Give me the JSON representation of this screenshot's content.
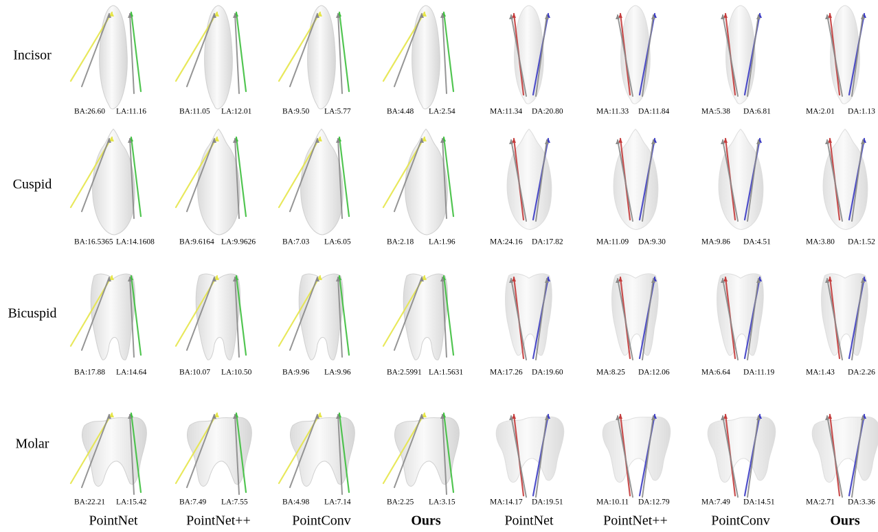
{
  "row_labels": [
    "Incisor",
    "Cuspid",
    "Bicuspid",
    "Molar"
  ],
  "column_labels": [
    "PointNet",
    "PointNet++",
    "PointConv",
    "Ours",
    "PointNet",
    "PointNet++",
    "PointConv",
    "Ours"
  ],
  "cells": [
    [
      [
        "BA:26.60",
        "LA:11.16"
      ],
      [
        "BA:11.05",
        "LA:12.01"
      ],
      [
        "BA:9.50",
        "LA:5.77"
      ],
      [
        "BA:4.48",
        "LA:2.54"
      ],
      [
        "MA:11.34",
        "DA:20.80"
      ],
      [
        "MA:11.33",
        "DA:11.84"
      ],
      [
        "MA:5.38",
        "DA:6.81"
      ],
      [
        "MA:2.01",
        "DA:1.13"
      ]
    ],
    [
      [
        "BA:16.5365",
        "LA:14.1608"
      ],
      [
        "BA:9.6164",
        "LA:9.9626"
      ],
      [
        "BA:7.03",
        "LA:6.05"
      ],
      [
        "BA:2.18",
        "LA:1.96"
      ],
      [
        "MA:24.16",
        "DA:17.82"
      ],
      [
        "MA:11.09",
        "DA:9.30"
      ],
      [
        "MA:9.86",
        "DA:4.51"
      ],
      [
        "MA:3.80",
        "DA:1.52"
      ]
    ],
    [
      [
        "BA:17.88",
        "LA:14.64"
      ],
      [
        "BA:10.07",
        "LA:10.50"
      ],
      [
        "BA:9.96",
        "LA:9.96"
      ],
      [
        "BA:2.5991",
        "LA:1.5631"
      ],
      [
        "MA:17.26",
        "DA:19.60"
      ],
      [
        "MA:8.25",
        "DA:12.06"
      ],
      [
        "MA:6.64",
        "DA:11.19"
      ],
      [
        "MA:1.43",
        "DA:2.26"
      ]
    ],
    [
      [
        "BA:22.21",
        "LA:15.42"
      ],
      [
        "BA:7.49",
        "LA:7.55"
      ],
      [
        "BA:4.98",
        "LA:7.14"
      ],
      [
        "BA:2.25",
        "LA:3.15"
      ],
      [
        "MA:14.17",
        "DA:19.51"
      ],
      [
        "MA:10.11",
        "DA:12.79"
      ],
      [
        "MA:7.49",
        "DA:14.51"
      ],
      [
        "MA:2.71",
        "DA:3.36"
      ]
    ]
  ]
}
